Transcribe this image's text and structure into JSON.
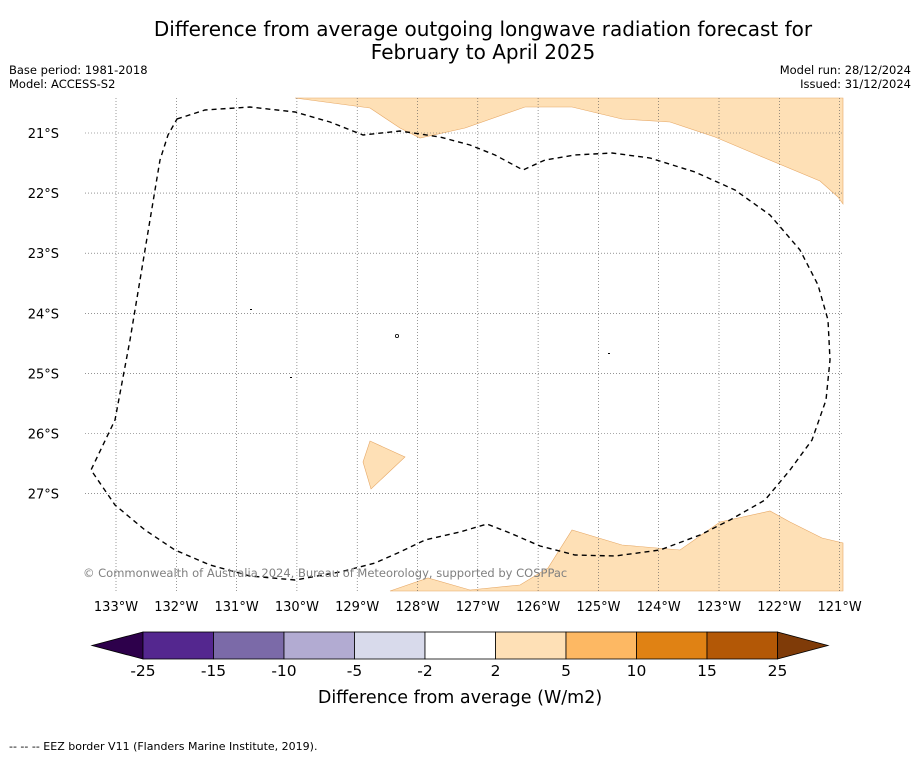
{
  "title": {
    "line1": "Difference from average outgoing longwave radiation forecast for",
    "line2": "February to April 2025"
  },
  "meta": {
    "base_period": "Base period: 1981-2018",
    "model": "Model: ACCESS-S2",
    "model_run": "Model run: 28/12/2024",
    "issued": "Issued: 31/12/2024"
  },
  "map": {
    "lon_labels": [
      "133°W",
      "132°W",
      "131°W",
      "130°W",
      "129°W",
      "128°W",
      "127°W",
      "126°W",
      "125°W",
      "124°W",
      "123°W",
      "122°W",
      "121°W"
    ],
    "lat_labels": [
      "21°S",
      "22°S",
      "23°S",
      "24°S",
      "25°S",
      "26°S",
      "27°S"
    ],
    "copyright": "© Commonwealth of Australia 2024, Bureau of Meteorology, supported by COSPPac"
  },
  "colorbar": {
    "ticks": [
      "-25",
      "-15",
      "-10",
      "-5",
      "-2",
      "2",
      "5",
      "10",
      "15",
      "25"
    ],
    "colors": [
      "#54278f",
      "#7b6aa8",
      "#b2abd2",
      "#d8daeb",
      "#ffffff",
      "#fee0b6",
      "#fdb863",
      "#e08214",
      "#b35806"
    ],
    "under_color": "#2d004b",
    "over_color": "#7f3b08",
    "label": "Difference from average (W/m2)"
  },
  "footnote": "--  --  -- EEZ border V11 (Flanders Marine Institute, 2019)."
}
